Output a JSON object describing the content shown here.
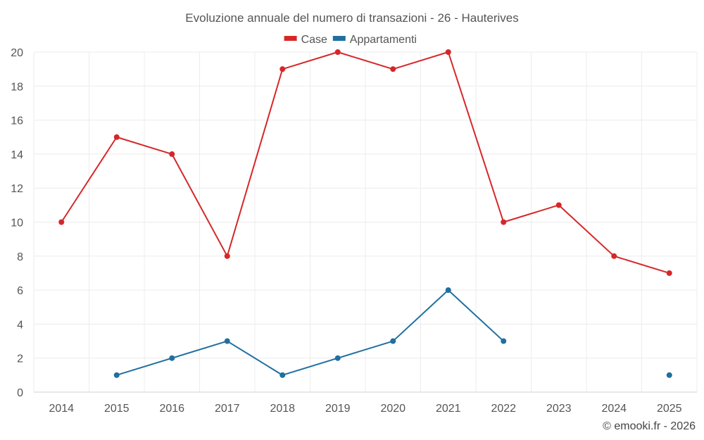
{
  "chart_data": {
    "type": "line",
    "title": "Evoluzione annuale del numero di transazioni - 26 - Hauterives",
    "categories": [
      "2014",
      "2015",
      "2016",
      "2017",
      "2018",
      "2019",
      "2020",
      "2021",
      "2022",
      "2023",
      "2024",
      "2025"
    ],
    "series": [
      {
        "name": "Case",
        "color": "#d62728",
        "values": [
          10,
          15,
          14,
          8,
          19,
          20,
          19,
          20,
          10,
          11,
          8,
          7
        ]
      },
      {
        "name": "Appartamenti",
        "color": "#1f6f9f",
        "values": [
          null,
          1,
          2,
          3,
          1,
          2,
          3,
          6,
          3,
          null,
          null,
          1
        ]
      }
    ],
    "xlabel": "",
    "ylabel": "",
    "ylim": [
      0,
      20
    ],
    "yticks": [
      0,
      2,
      4,
      6,
      8,
      10,
      12,
      14,
      16,
      18,
      20
    ],
    "grid": true,
    "legend": "top-center",
    "credit": "© emooki.fr - 2026"
  }
}
